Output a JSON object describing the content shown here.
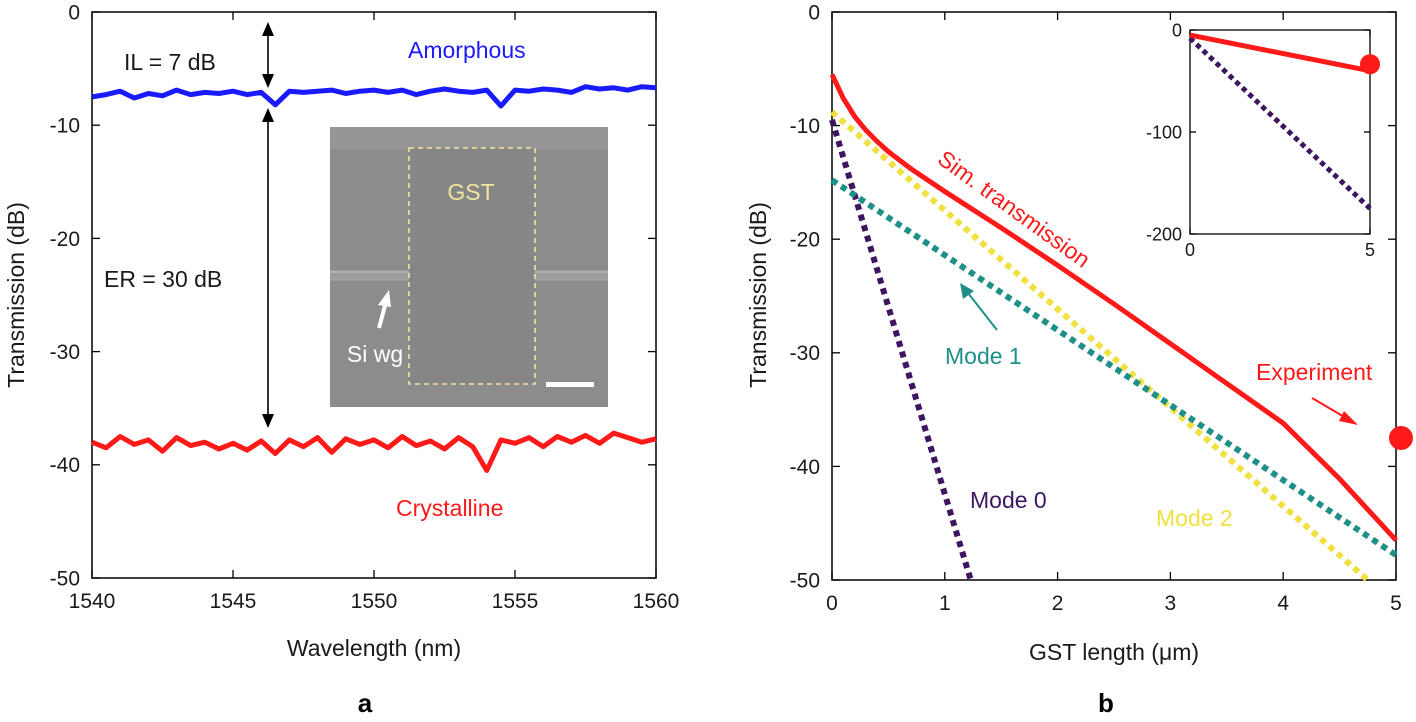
{
  "chart_data": [
    {
      "panel": "a",
      "type": "line",
      "title": "",
      "xlabel": "Wavelength (nm)",
      "ylabel": "Transmission (dB)",
      "xlim": [
        1540,
        1560
      ],
      "ylim": [
        -50,
        0
      ],
      "xticks": [
        "1540",
        "1545",
        "1550",
        "1555",
        "1560"
      ],
      "yticks": [
        "0",
        "-10",
        "-20",
        "-30",
        "-40",
        "-50"
      ],
      "series": [
        {
          "name": "Amorphous",
          "color": "#1a1aff",
          "x": [
            1540,
            1540.5,
            1541,
            1541.5,
            1542,
            1542.5,
            1543,
            1543.5,
            1544,
            1544.5,
            1545,
            1545.5,
            1546,
            1546.5,
            1547,
            1547.5,
            1548,
            1548.5,
            1549,
            1549.5,
            1550,
            1550.5,
            1551,
            1551.5,
            1552,
            1552.5,
            1553,
            1553.5,
            1554,
            1554.5,
            1555,
            1555.5,
            1556,
            1556.5,
            1557,
            1557.5,
            1558,
            1558.5,
            1559,
            1559.5,
            1560
          ],
          "y": [
            -7.5,
            -7.3,
            -7.0,
            -7.6,
            -7.2,
            -7.4,
            -6.9,
            -7.3,
            -7.1,
            -7.2,
            -7.0,
            -7.3,
            -7.1,
            -8.2,
            -7.0,
            -7.1,
            -7.0,
            -6.9,
            -7.2,
            -7.0,
            -6.9,
            -7.1,
            -6.9,
            -7.3,
            -7.0,
            -6.8,
            -7.0,
            -7.1,
            -6.9,
            -8.3,
            -6.9,
            -7.0,
            -6.8,
            -6.9,
            -7.1,
            -6.6,
            -6.8,
            -6.7,
            -6.9,
            -6.6,
            -6.7
          ]
        },
        {
          "name": "Crystalline",
          "color": "#ff1a1a",
          "x": [
            1540,
            1540.5,
            1541,
            1541.5,
            1542,
            1542.5,
            1543,
            1543.5,
            1544,
            1544.5,
            1545,
            1545.5,
            1546,
            1546.5,
            1547,
            1547.5,
            1548,
            1548.5,
            1549,
            1549.5,
            1550,
            1550.5,
            1551,
            1551.5,
            1552,
            1552.5,
            1553,
            1553.5,
            1554,
            1554.5,
            1555,
            1555.5,
            1556,
            1556.5,
            1557,
            1557.5,
            1558,
            1558.5,
            1559,
            1559.5,
            1560
          ],
          "y": [
            -38.0,
            -38.5,
            -37.5,
            -38.2,
            -37.8,
            -38.8,
            -37.6,
            -38.3,
            -38.0,
            -38.6,
            -38.1,
            -38.7,
            -37.9,
            -39.0,
            -37.8,
            -38.4,
            -37.6,
            -38.9,
            -37.7,
            -38.2,
            -37.8,
            -38.5,
            -37.5,
            -38.3,
            -37.9,
            -38.6,
            -37.6,
            -38.4,
            -40.5,
            -37.8,
            -38.1,
            -37.6,
            -38.4,
            -37.5,
            -38.0,
            -37.4,
            -38.1,
            -37.2,
            -37.6,
            -38.0,
            -37.7
          ]
        }
      ],
      "annotations": {
        "il_label": "IL = 7 dB",
        "er_label": "ER = 30 dB",
        "amorphous_label": "Amorphous",
        "crystalline_label": "Crystalline"
      },
      "inset": {
        "gst_label": "GST",
        "si_wg_label": "Si wg"
      }
    },
    {
      "panel": "b",
      "type": "line",
      "title": "",
      "xlabel": "GST length (μm)",
      "ylabel": "Transmission (dB)",
      "xlim": [
        0,
        5
      ],
      "ylim": [
        -50,
        0
      ],
      "xticks": [
        "0",
        "1",
        "2",
        "3",
        "4",
        "5"
      ],
      "yticks": [
        "0",
        "-10",
        "-20",
        "-30",
        "-40",
        "-50"
      ],
      "series": [
        {
          "name": "Sim. transmission",
          "color": "#ff1a1a",
          "style": "solid",
          "x": [
            0,
            0.1,
            0.2,
            0.3,
            0.4,
            0.5,
            0.7,
            1,
            1.5,
            2,
            2.5,
            3,
            3.5,
            4,
            4.5,
            5
          ],
          "y": [
            -5.5,
            -7.6,
            -9.2,
            -10.4,
            -11.4,
            -12.3,
            -13.8,
            -15.8,
            -19.0,
            -22.3,
            -25.7,
            -29.2,
            -32.7,
            -36.2,
            -41.1,
            -46.5
          ]
        },
        {
          "name": "Mode 0",
          "color": "#3d1560",
          "style": "dotted",
          "x": [
            0,
            1.23
          ],
          "y": [
            -9.5,
            -50
          ]
        },
        {
          "name": "Mode 1",
          "color": "#1e9088",
          "style": "dotted",
          "x": [
            0,
            5
          ],
          "y": [
            -14.8,
            -47.8
          ]
        },
        {
          "name": "Mode 2",
          "color": "#f0e040",
          "style": "dotted",
          "x": [
            0,
            4.75
          ],
          "y": [
            -8.8,
            -50
          ]
        },
        {
          "name": "Experiment",
          "color": "#ff1a1a",
          "style": "marker",
          "x": [
            5
          ],
          "y": [
            -37.5
          ]
        }
      ],
      "annotations": {
        "sim_label": "Sim. transmission",
        "mode0_label": "Mode 0",
        "mode1_label": "Mode 1",
        "mode2_label": "Mode 2",
        "experiment_label": "Experiment"
      },
      "inset": {
        "xlim": [
          0,
          5
        ],
        "ylim": [
          -200,
          0
        ],
        "xticks": [
          "0",
          "5"
        ],
        "yticks": [
          "0",
          "-100",
          "-200"
        ],
        "sim": {
          "x": [
            0,
            5
          ],
          "y": [
            -5,
            -40
          ]
        },
        "mode0": {
          "x": [
            0,
            5
          ],
          "y": [
            -8,
            -175
          ]
        },
        "experiment": {
          "x": 5,
          "y": -37.5
        }
      }
    }
  ],
  "panels": {
    "a_label": "a",
    "b_label": "b"
  },
  "colors": {
    "blue": "#1a1aff",
    "red": "#ff1a1a",
    "purple": "#3d1560",
    "teal": "#1e9088",
    "yellow": "#f0e040",
    "inset_bg": "#8a8a8a",
    "inset_dash": "#f0e6a0"
  }
}
